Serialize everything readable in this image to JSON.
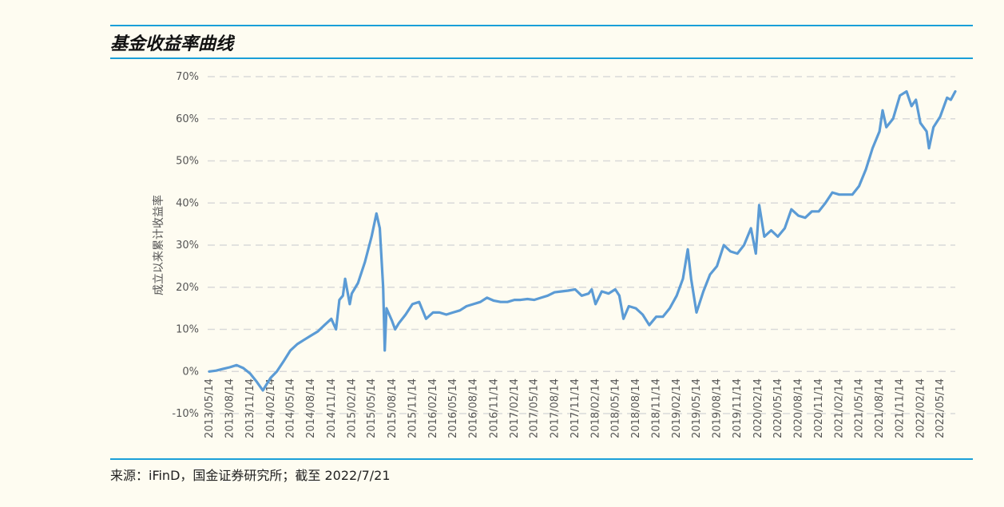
{
  "header": {
    "title": "基金收益率曲线"
  },
  "footer": {
    "source": "来源：iFinD，国金证券研究所；截至 2022/7/21"
  },
  "colors": {
    "line": "#5b9bd5",
    "accent": "#1a9fd8",
    "background": "#fefcf1",
    "grid": "#d9d9d9"
  },
  "chart_data": {
    "type": "line",
    "title": "",
    "ylabel": "成立以来累计收益率",
    "xlabel": "",
    "ylim": [
      -10,
      70
    ],
    "yticks": [
      "-10%",
      "0%",
      "10%",
      "20%",
      "30%",
      "40%",
      "50%",
      "60%",
      "70%"
    ],
    "grid": "horizontal dashed",
    "x_tick_labels": [
      "2013/05/14",
      "2013/08/14",
      "2013/11/14",
      "2014/02/14",
      "2014/05/14",
      "2014/08/14",
      "2014/11/14",
      "2015/02/14",
      "2015/05/14",
      "2015/08/14",
      "2015/11/14",
      "2016/02/14",
      "2016/05/14",
      "2016/08/14",
      "2016/11/14",
      "2017/02/14",
      "2017/05/14",
      "2017/08/14",
      "2017/11/14",
      "2018/02/14",
      "2018/05/14",
      "2018/08/14",
      "2018/11/14",
      "2019/02/14",
      "2019/05/14",
      "2019/08/14",
      "2019/11/14",
      "2020/02/14",
      "2020/05/14",
      "2020/08/14",
      "2020/11/14",
      "2021/02/14",
      "2021/05/14",
      "2021/08/14",
      "2021/11/14",
      "2022/02/14",
      "2022/05/14"
    ],
    "series": [
      {
        "name": "",
        "points": [
          [
            "2013/05/14",
            0.0
          ],
          [
            "2013/06/14",
            0.2
          ],
          [
            "2013/07/14",
            0.6
          ],
          [
            "2013/08/14",
            1.0
          ],
          [
            "2013/09/14",
            1.5
          ],
          [
            "2013/10/14",
            0.8
          ],
          [
            "2013/11/14",
            -0.5
          ],
          [
            "2013/12/14",
            -2.5
          ],
          [
            "2014/01/10",
            -4.5
          ],
          [
            "2014/02/14",
            -1.5
          ],
          [
            "2014/03/14",
            0.0
          ],
          [
            "2014/04/14",
            2.5
          ],
          [
            "2014/05/14",
            5.0
          ],
          [
            "2014/06/14",
            6.5
          ],
          [
            "2014/07/14",
            7.5
          ],
          [
            "2014/08/14",
            8.5
          ],
          [
            "2014/09/14",
            9.5
          ],
          [
            "2014/10/14",
            11.0
          ],
          [
            "2014/11/14",
            12.5
          ],
          [
            "2014/12/05",
            10.0
          ],
          [
            "2014/12/20",
            17.0
          ],
          [
            "2015/01/05",
            18.0
          ],
          [
            "2015/01/15",
            22.0
          ],
          [
            "2015/02/05",
            16.0
          ],
          [
            "2015/02/14",
            18.5
          ],
          [
            "2015/03/14",
            21.0
          ],
          [
            "2015/04/14",
            26.0
          ],
          [
            "2015/05/14",
            32.0
          ],
          [
            "2015/06/05",
            37.5
          ],
          [
            "2015/06/20",
            34.0
          ],
          [
            "2015/07/05",
            20.0
          ],
          [
            "2015/07/12",
            5.0
          ],
          [
            "2015/07/20",
            15.0
          ],
          [
            "2015/08/14",
            12.0
          ],
          [
            "2015/08/28",
            10.0
          ],
          [
            "2015/09/14",
            11.5
          ],
          [
            "2015/10/14",
            13.5
          ],
          [
            "2015/11/14",
            16.0
          ],
          [
            "2015/12/14",
            16.5
          ],
          [
            "2016/01/14",
            12.5
          ],
          [
            "2016/02/14",
            14.0
          ],
          [
            "2016/03/14",
            14.0
          ],
          [
            "2016/04/14",
            13.5
          ],
          [
            "2016/05/14",
            14.0
          ],
          [
            "2016/06/14",
            14.5
          ],
          [
            "2016/07/14",
            15.5
          ],
          [
            "2016/08/14",
            16.0
          ],
          [
            "2016/09/14",
            16.5
          ],
          [
            "2016/10/14",
            17.5
          ],
          [
            "2016/11/14",
            16.8
          ],
          [
            "2016/12/14",
            16.5
          ],
          [
            "2017/01/14",
            16.5
          ],
          [
            "2017/02/14",
            17.0
          ],
          [
            "2017/03/14",
            17.0
          ],
          [
            "2017/04/14",
            17.2
          ],
          [
            "2017/05/14",
            17.0
          ],
          [
            "2017/06/14",
            17.5
          ],
          [
            "2017/07/14",
            18.0
          ],
          [
            "2017/08/14",
            18.8
          ],
          [
            "2017/09/14",
            19.0
          ],
          [
            "2017/10/14",
            19.2
          ],
          [
            "2017/11/14",
            19.5
          ],
          [
            "2017/12/14",
            18.0
          ],
          [
            "2018/01/14",
            18.5
          ],
          [
            "2018/01/28",
            19.5
          ],
          [
            "2018/02/14",
            16.0
          ],
          [
            "2018/03/14",
            19.0
          ],
          [
            "2018/04/14",
            18.5
          ],
          [
            "2018/05/14",
            19.5
          ],
          [
            "2018/06/01",
            18.0
          ],
          [
            "2018/06/20",
            12.5
          ],
          [
            "2018/07/14",
            15.5
          ],
          [
            "2018/08/14",
            15.0
          ],
          [
            "2018/09/14",
            13.5
          ],
          [
            "2018/10/14",
            11.0
          ],
          [
            "2018/11/14",
            13.0
          ],
          [
            "2018/12/14",
            13.0
          ],
          [
            "2019/01/14",
            15.0
          ],
          [
            "2019/02/14",
            18.0
          ],
          [
            "2019/03/14",
            22.0
          ],
          [
            "2019/04/05",
            29.0
          ],
          [
            "2019/04/20",
            22.0
          ],
          [
            "2019/05/14",
            14.0
          ],
          [
            "2019/06/14",
            19.0
          ],
          [
            "2019/07/14",
            23.0
          ],
          [
            "2019/08/14",
            25.0
          ],
          [
            "2019/09/14",
            30.0
          ],
          [
            "2019/10/14",
            28.5
          ],
          [
            "2019/11/14",
            28.0
          ],
          [
            "2019/12/14",
            30.0
          ],
          [
            "2020/01/14",
            34.0
          ],
          [
            "2020/02/05",
            28.0
          ],
          [
            "2020/02/20",
            39.5
          ],
          [
            "2020/03/14",
            32.0
          ],
          [
            "2020/04/14",
            33.5
          ],
          [
            "2020/05/14",
            32.0
          ],
          [
            "2020/06/14",
            34.0
          ],
          [
            "2020/07/14",
            38.5
          ],
          [
            "2020/08/14",
            37.0
          ],
          [
            "2020/09/14",
            36.5
          ],
          [
            "2020/10/14",
            38.0
          ],
          [
            "2020/11/14",
            38.0
          ],
          [
            "2020/12/14",
            40.0
          ],
          [
            "2021/01/14",
            42.5
          ],
          [
            "2021/02/14",
            42.0
          ],
          [
            "2021/03/14",
            42.0
          ],
          [
            "2021/04/14",
            42.0
          ],
          [
            "2021/05/14",
            44.0
          ],
          [
            "2021/06/14",
            48.0
          ],
          [
            "2021/07/14",
            53.0
          ],
          [
            "2021/08/14",
            57.0
          ],
          [
            "2021/08/28",
            62.0
          ],
          [
            "2021/09/14",
            58.0
          ],
          [
            "2021/10/14",
            60.0
          ],
          [
            "2021/11/14",
            65.5
          ],
          [
            "2021/12/14",
            66.5
          ],
          [
            "2022/01/05",
            63.0
          ],
          [
            "2022/01/25",
            64.5
          ],
          [
            "2022/02/14",
            59.0
          ],
          [
            "2022/03/14",
            57.0
          ],
          [
            "2022/03/25",
            53.0
          ],
          [
            "2022/04/14",
            58.0
          ],
          [
            "2022/05/14",
            60.5
          ],
          [
            "2022/06/14",
            65.0
          ],
          [
            "2022/07/01",
            64.5
          ],
          [
            "2022/07/21",
            66.5
          ]
        ]
      }
    ]
  }
}
